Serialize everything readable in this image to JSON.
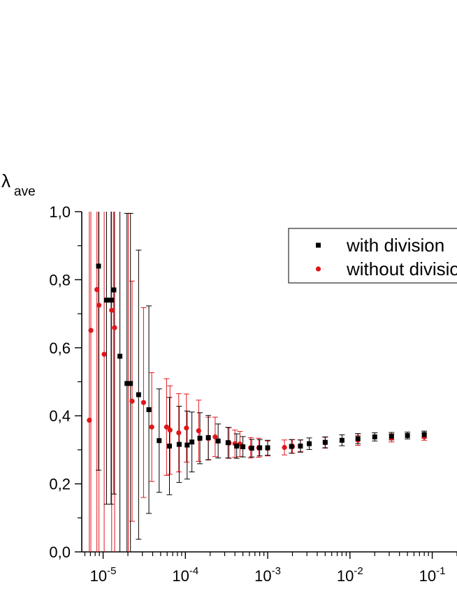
{
  "chart_data": {
    "type": "scatter",
    "ylabel_main": "λ",
    "ylabel_sub": "ave",
    "x_scale": "log",
    "xlim": [
      5.5e-06,
      0.2
    ],
    "ylim": [
      0.0,
      1.0
    ],
    "x_ticks": [
      {
        "base": "10",
        "exp": "-5",
        "value": 1e-05
      },
      {
        "base": "10",
        "exp": "-4",
        "value": 0.0001
      },
      {
        "base": "10",
        "exp": "-3",
        "value": 0.001
      },
      {
        "base": "10",
        "exp": "-2",
        "value": 0.01
      },
      {
        "base": "10",
        "exp": "-1",
        "value": 0.1
      }
    ],
    "y_ticks": [
      "0,0",
      "0,2",
      "0,4",
      "0,6",
      "0,8",
      "1,0"
    ],
    "y_tick_values": [
      0.0,
      0.2,
      0.4,
      0.6,
      0.8,
      1.0
    ],
    "legend": {
      "position": "top-right"
    },
    "colors": {
      "with_division": "#000000",
      "without_division": "#e0161b"
    },
    "series": [
      {
        "name": "with division",
        "marker": "square",
        "color": "#000000",
        "points": [
          {
            "x": 8.8e-06,
            "y": 0.84,
            "err": 0.6
          },
          {
            "x": 1.1e-05,
            "y": 0.74,
            "err": 0.6
          },
          {
            "x": 1.25e-05,
            "y": 0.74,
            "err": 0.6
          },
          {
            "x": 1.35e-05,
            "y": 0.77,
            "err": 0.6
          },
          {
            "x": 1.6e-05,
            "y": 0.575,
            "err": 0.6
          },
          {
            "x": 1.95e-05,
            "y": 0.495,
            "err": 0.5
          },
          {
            "x": 2.15e-05,
            "y": 0.495,
            "err": 0.5
          },
          {
            "x": 2.7e-05,
            "y": 0.462,
            "err": 0.425
          },
          {
            "x": 3.6e-05,
            "y": 0.418,
            "err": 0.305
          },
          {
            "x": 4.8e-05,
            "y": 0.327,
            "err": 0.152
          },
          {
            "x": 6.4e-05,
            "y": 0.311,
            "err": 0.143
          },
          {
            "x": 8.4e-05,
            "y": 0.316,
            "err": 0.112
          },
          {
            "x": 0.000105,
            "y": 0.314,
            "err": 0.1
          },
          {
            "x": 0.00012,
            "y": 0.323,
            "err": 0.088
          },
          {
            "x": 0.00015,
            "y": 0.334,
            "err": 0.075
          },
          {
            "x": 0.00019,
            "y": 0.336,
            "err": 0.065
          },
          {
            "x": 0.00025,
            "y": 0.326,
            "err": 0.05
          },
          {
            "x": 0.00033,
            "y": 0.321,
            "err": 0.045
          },
          {
            "x": 0.00042,
            "y": 0.311,
            "err": 0.036
          },
          {
            "x": 0.0005,
            "y": 0.309,
            "err": 0.03
          },
          {
            "x": 0.00064,
            "y": 0.305,
            "err": 0.026
          },
          {
            "x": 0.0008,
            "y": 0.306,
            "err": 0.024
          },
          {
            "x": 0.001,
            "y": 0.306,
            "err": 0.022
          },
          {
            "x": 0.00195,
            "y": 0.31,
            "err": 0.02
          },
          {
            "x": 0.0025,
            "y": 0.311,
            "err": 0.018
          },
          {
            "x": 0.0032,
            "y": 0.318,
            "err": 0.017
          },
          {
            "x": 0.005,
            "y": 0.322,
            "err": 0.016
          },
          {
            "x": 0.008,
            "y": 0.328,
            "err": 0.016
          },
          {
            "x": 0.0125,
            "y": 0.333,
            "err": 0.015
          },
          {
            "x": 0.02,
            "y": 0.338,
            "err": 0.012
          },
          {
            "x": 0.032,
            "y": 0.34,
            "err": 0.011
          },
          {
            "x": 0.05,
            "y": 0.342,
            "err": 0.01
          },
          {
            "x": 0.08,
            "y": 0.345,
            "err": 0.01
          }
        ]
      },
      {
        "name": "without division",
        "marker": "circle",
        "color": "#e0161b",
        "points": [
          {
            "x": 6.8e-06,
            "y": 0.387,
            "err": 0.8
          },
          {
            "x": 7.1e-06,
            "y": 0.651,
            "err": 0.8
          },
          {
            "x": 8.4e-06,
            "y": 0.771,
            "err": 0.8
          },
          {
            "x": 8.9e-06,
            "y": 0.725,
            "err": 0.8
          },
          {
            "x": 1.03e-05,
            "y": 0.581,
            "err": 0.8
          },
          {
            "x": 1.27e-05,
            "y": 0.71,
            "err": 0.8
          },
          {
            "x": 1.38e-05,
            "y": 0.659,
            "err": 0.8
          },
          {
            "x": 2.02e-05,
            "y": 0.495,
            "err": 0.5
          },
          {
            "x": 2.25e-05,
            "y": 0.443,
            "err": 0.353
          },
          {
            "x": 3.1e-05,
            "y": 0.439,
            "err": 0.279
          },
          {
            "x": 3.9e-05,
            "y": 0.367,
            "err": 0.16
          },
          {
            "x": 5.9e-05,
            "y": 0.367,
            "err": 0.142
          },
          {
            "x": 6.5e-05,
            "y": 0.358,
            "err": 0.13
          },
          {
            "x": 8.3e-05,
            "y": 0.35,
            "err": 0.115
          },
          {
            "x": 0.000103,
            "y": 0.364,
            "err": 0.1
          },
          {
            "x": 0.000145,
            "y": 0.356,
            "err": 0.09
          },
          {
            "x": 0.00019,
            "y": 0.333,
            "err": 0.063
          },
          {
            "x": 0.00023,
            "y": 0.338,
            "err": 0.058
          },
          {
            "x": 0.00034,
            "y": 0.32,
            "err": 0.045
          },
          {
            "x": 0.0004,
            "y": 0.318,
            "err": 0.04
          },
          {
            "x": 0.00046,
            "y": 0.317,
            "err": 0.037
          },
          {
            "x": 0.00062,
            "y": 0.306,
            "err": 0.03
          },
          {
            "x": 0.00078,
            "y": 0.306,
            "err": 0.028
          },
          {
            "x": 0.001,
            "y": 0.304,
            "err": 0.022
          },
          {
            "x": 0.0016,
            "y": 0.307,
            "err": 0.022
          },
          {
            "x": 0.002,
            "y": 0.31,
            "err": 0.02
          },
          {
            "x": 0.0025,
            "y": 0.312,
            "err": 0.017
          },
          {
            "x": 0.005,
            "y": 0.321,
            "err": 0.016
          },
          {
            "x": 0.0125,
            "y": 0.328,
            "err": 0.015
          },
          {
            "x": 0.032,
            "y": 0.335,
            "err": 0.012
          },
          {
            "x": 0.08,
            "y": 0.338,
            "err": 0.01
          }
        ]
      }
    ]
  }
}
